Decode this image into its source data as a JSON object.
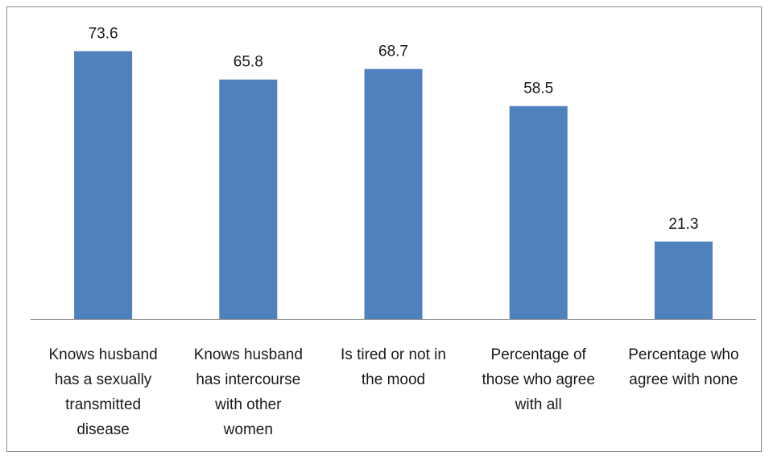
{
  "chart_data": {
    "type": "bar",
    "title": "",
    "xlabel": "",
    "ylabel": "",
    "ylim": [
      0,
      80
    ],
    "grid": false,
    "legend": "none",
    "bar_color": "#4f81bd",
    "categories": [
      [
        "Knows husband",
        "has a sexually",
        "transmitted",
        "disease"
      ],
      [
        "Knows husband",
        "has intercourse",
        "with other",
        "women"
      ],
      [
        "Is tired or not in",
        "the mood"
      ],
      [
        "Percentage of",
        "those who agree",
        "with all"
      ],
      [
        "Percentage who",
        "agree with none"
      ]
    ],
    "values": [
      73.6,
      65.8,
      68.7,
      58.5,
      21.3
    ],
    "value_labels": [
      "73.6",
      "65.8",
      "68.7",
      "58.5",
      "21.3"
    ]
  }
}
